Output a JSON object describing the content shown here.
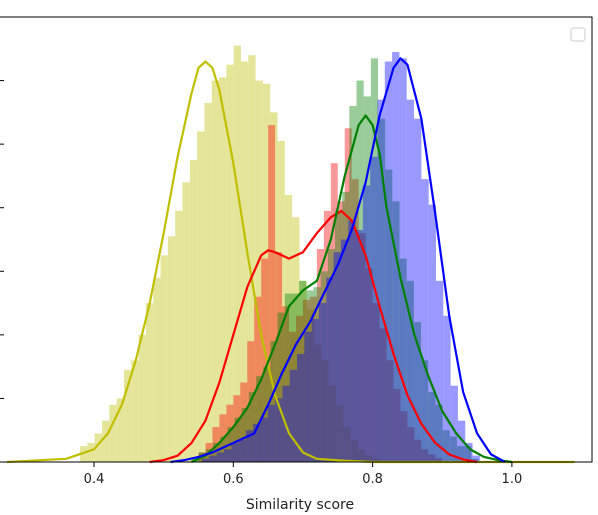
{
  "chart_data": {
    "type": "histogram",
    "title": "",
    "xlabel": "Similarity score",
    "ylabel": "",
    "xlim": [
      0.265,
      1.115
    ],
    "ylim": [
      0,
      7.0
    ],
    "xticks": [
      0.4,
      0.6,
      0.8,
      1.0
    ],
    "xtick_labels": [
      "0.4",
      "0.6",
      "0.8",
      "1.0"
    ],
    "yticks": [
      0,
      1,
      2,
      3,
      4,
      5,
      6,
      7
    ],
    "grid": false,
    "legend": {
      "placement": "top-right",
      "entries": []
    },
    "series": [
      {
        "color": "#bfbf00",
        "hist": {
          "bin_start": 0.38,
          "bin_width": 0.0105,
          "heights": [
            0.25,
            0.3,
            0.45,
            0.65,
            0.9,
            1.0,
            1.45,
            1.6,
            2.0,
            2.5,
            2.9,
            3.25,
            3.55,
            3.95,
            4.4,
            4.75,
            5.2,
            5.65,
            6.0,
            6.05,
            6.25,
            6.55,
            6.3,
            6.4,
            6.0,
            5.95,
            5.5,
            5.05,
            4.2,
            3.85,
            2.85,
            2.4,
            1.85,
            1.6,
            1.2,
            0.9,
            0.55,
            0.35,
            0.2,
            0.1,
            0.05
          ]
        },
        "kde": {
          "x": [
            0.275,
            0.36,
            0.4,
            0.42,
            0.44,
            0.46,
            0.48,
            0.5,
            0.52,
            0.54,
            0.55,
            0.56,
            0.57,
            0.58,
            0.6,
            0.62,
            0.64,
            0.66,
            0.68,
            0.7,
            0.72,
            0.76,
            0.8,
            1.09
          ],
          "y": [
            0.0,
            0.05,
            0.2,
            0.45,
            0.9,
            1.6,
            2.5,
            3.6,
            4.8,
            5.8,
            6.2,
            6.3,
            6.2,
            5.85,
            4.7,
            3.3,
            2.0,
            1.05,
            0.45,
            0.15,
            0.05,
            0.02,
            0.0,
            0.0
          ]
        }
      },
      {
        "color": "#ff0000",
        "hist": {
          "bin_start": 0.55,
          "bin_width": 0.01,
          "heights": [
            0.15,
            0.3,
            0.55,
            0.75,
            0.9,
            1.05,
            1.25,
            1.9,
            2.6,
            3.2,
            5.3,
            3.3,
            2.45,
            2.05,
            2.3,
            2.55,
            2.6,
            3.35,
            3.95,
            4.7,
            4.1,
            5.25,
            4.45,
            3.6,
            3.05,
            2.5,
            2.1,
            1.6,
            1.15,
            0.8,
            0.55,
            0.35,
            0.2,
            0.12,
            0.06
          ]
        },
        "kde": {
          "x": [
            0.48,
            0.5,
            0.52,
            0.54,
            0.56,
            0.58,
            0.6,
            0.62,
            0.64,
            0.65,
            0.66,
            0.68,
            0.7,
            0.72,
            0.74,
            0.755,
            0.77,
            0.79,
            0.81,
            0.83,
            0.85,
            0.87,
            0.89,
            0.91,
            0.93,
            0.95
          ],
          "y": [
            0.0,
            0.03,
            0.1,
            0.3,
            0.65,
            1.25,
            2.0,
            2.75,
            3.25,
            3.33,
            3.3,
            3.2,
            3.3,
            3.6,
            3.85,
            3.95,
            3.8,
            3.25,
            2.45,
            1.7,
            1.05,
            0.6,
            0.3,
            0.12,
            0.04,
            0.0
          ]
        }
      },
      {
        "color": "#008000",
        "hist": {
          "bin_start": 0.54,
          "bin_width": 0.0103,
          "heights": [
            0.05,
            0.15,
            0.2,
            0.3,
            0.4,
            0.55,
            0.7,
            0.85,
            1.1,
            1.35,
            1.5,
            1.9,
            2.35,
            2.65,
            2.65,
            2.85,
            2.7,
            2.75,
            3.0,
            3.35,
            3.95,
            4.25,
            5.6,
            6.0,
            5.75,
            6.35,
            5.4,
            4.6,
            4.1,
            3.2,
            2.85,
            2.2,
            1.6,
            1.1,
            0.9,
            0.5,
            0.4,
            0.25,
            0.25,
            0.05
          ]
        },
        "kde": {
          "x": [
            0.54,
            0.56,
            0.58,
            0.6,
            0.62,
            0.64,
            0.66,
            0.68,
            0.7,
            0.72,
            0.74,
            0.76,
            0.78,
            0.79,
            0.8,
            0.81,
            0.82,
            0.84,
            0.86,
            0.88,
            0.9,
            0.92,
            0.94,
            0.96,
            0.98,
            1.0
          ],
          "y": [
            0.0,
            0.1,
            0.3,
            0.55,
            0.85,
            1.3,
            1.85,
            2.45,
            2.7,
            2.85,
            3.5,
            4.5,
            5.3,
            5.45,
            5.3,
            4.85,
            4.0,
            2.9,
            2.0,
            1.35,
            0.8,
            0.45,
            0.2,
            0.08,
            0.03,
            0.0
          ]
        }
      },
      {
        "color": "#0000ff",
        "hist": {
          "bin_start": 0.555,
          "bin_width": 0.0105,
          "heights": [
            0.05,
            0.1,
            0.15,
            0.2,
            0.3,
            0.35,
            0.5,
            0.6,
            0.7,
            0.9,
            1.0,
            1.2,
            1.45,
            1.7,
            2.05,
            2.25,
            2.5,
            2.9,
            3.3,
            3.5,
            3.8,
            3.65,
            4.35,
            4.8,
            5.7,
            6.3,
            6.45,
            6.35,
            5.7,
            5.4,
            4.45,
            4.05,
            2.85,
            2.3,
            1.2,
            0.65,
            0.3,
            0.1
          ]
        },
        "kde": {
          "x": [
            0.51,
            0.53,
            0.55,
            0.57,
            0.59,
            0.61,
            0.63,
            0.65,
            0.67,
            0.69,
            0.71,
            0.73,
            0.75,
            0.77,
            0.79,
            0.81,
            0.83,
            0.84,
            0.85,
            0.87,
            0.89,
            0.91,
            0.93,
            0.95,
            0.97,
            0.99
          ],
          "y": [
            0.0,
            0.03,
            0.08,
            0.15,
            0.25,
            0.35,
            0.45,
            0.9,
            1.4,
            1.85,
            2.2,
            2.65,
            3.1,
            3.65,
            4.4,
            5.45,
            6.2,
            6.35,
            6.25,
            5.4,
            3.9,
            2.3,
            1.1,
            0.45,
            0.12,
            0.0
          ]
        }
      }
    ]
  }
}
